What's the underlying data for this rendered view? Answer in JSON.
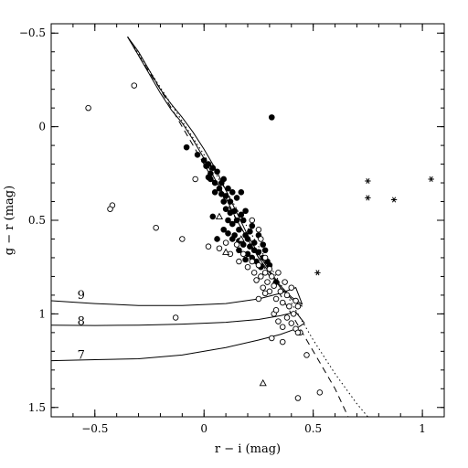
{
  "chart_data": {
    "type": "scatter",
    "xlabel": "r − i (mag)",
    "ylabel": "g − r (mag)",
    "xlim": [
      -0.7,
      1.1
    ],
    "ylim": [
      -0.55,
      1.55
    ],
    "y_inverted": true,
    "grid": false,
    "legend": "none",
    "x_ticks": [
      {
        "value": -0.5,
        "label": "−0.5"
      },
      {
        "value": 0,
        "label": "0"
      },
      {
        "value": 0.5,
        "label": "0.5"
      },
      {
        "value": 1,
        "label": "1"
      }
    ],
    "y_ticks": [
      {
        "value": -0.5,
        "label": "−0.5"
      },
      {
        "value": 0,
        "label": "0"
      },
      {
        "value": 0.5,
        "label": "0.5"
      },
      {
        "value": 1,
        "label": "1"
      },
      {
        "value": 1.5,
        "label": "1.5"
      }
    ],
    "lines": [
      {
        "style": "solid",
        "points": [
          [
            -0.35,
            -0.48
          ],
          [
            -0.3,
            -0.38
          ],
          [
            -0.25,
            -0.28
          ],
          [
            -0.2,
            -0.18
          ],
          [
            -0.15,
            -0.09
          ],
          [
            -0.1,
            -0.02
          ],
          [
            -0.05,
            0.07
          ],
          [
            0,
            0.17
          ],
          [
            0.05,
            0.28
          ],
          [
            0.1,
            0.38
          ],
          [
            0.15,
            0.5
          ],
          [
            0.2,
            0.6
          ],
          [
            0.25,
            0.7
          ],
          [
            0.3,
            0.78
          ],
          [
            0.35,
            0.86
          ],
          [
            0.4,
            0.92
          ],
          [
            0.45,
            0.96
          ]
        ]
      },
      {
        "style": "solid",
        "points": [
          [
            -0.35,
            -0.48
          ],
          [
            -0.3,
            -0.4
          ],
          [
            -0.25,
            -0.3
          ],
          [
            -0.2,
            -0.2
          ],
          [
            -0.15,
            -0.12
          ],
          [
            -0.1,
            -0.05
          ],
          [
            -0.05,
            0.03
          ],
          [
            0,
            0.12
          ],
          [
            0.05,
            0.22
          ],
          [
            0.1,
            0.34
          ],
          [
            0.15,
            0.46
          ],
          [
            0.2,
            0.58
          ],
          [
            0.25,
            0.68
          ],
          [
            0.3,
            0.77
          ],
          [
            0.35,
            0.85
          ],
          [
            0.4,
            0.91
          ],
          [
            0.45,
            0.95
          ]
        ]
      },
      {
        "style": "dotted",
        "points": [
          [
            -0.35,
            -0.48
          ],
          [
            -0.3,
            -0.39
          ],
          [
            -0.2,
            -0.21
          ],
          [
            -0.1,
            -0.03
          ],
          [
            0,
            0.15
          ],
          [
            0.1,
            0.34
          ],
          [
            0.2,
            0.54
          ],
          [
            0.3,
            0.74
          ],
          [
            0.4,
            0.94
          ],
          [
            0.5,
            1.14
          ],
          [
            0.6,
            1.32
          ],
          [
            0.7,
            1.48
          ],
          [
            0.75,
            1.55
          ]
        ]
      },
      {
        "style": "dashed",
        "points": [
          [
            -0.35,
            -0.48
          ],
          [
            -0.3,
            -0.38
          ],
          [
            -0.2,
            -0.2
          ],
          [
            -0.1,
            0.0
          ],
          [
            0,
            0.2
          ],
          [
            0.1,
            0.4
          ],
          [
            0.2,
            0.6
          ],
          [
            0.3,
            0.8
          ],
          [
            0.4,
            1.0
          ],
          [
            0.5,
            1.2
          ],
          [
            0.6,
            1.4
          ],
          [
            0.66,
            1.55
          ]
        ]
      },
      {
        "style": "solid",
        "label": "9",
        "label_at": [
          -0.58,
          0.9
        ],
        "points": [
          [
            -0.7,
            0.93
          ],
          [
            -0.5,
            0.945
          ],
          [
            -0.3,
            0.955
          ],
          [
            -0.1,
            0.955
          ],
          [
            0.1,
            0.945
          ],
          [
            0.25,
            0.92
          ],
          [
            0.35,
            0.89
          ],
          [
            0.42,
            0.86
          ],
          [
            0.45,
            0.95
          ]
        ]
      },
      {
        "style": "solid",
        "label": "8",
        "label_at": [
          -0.58,
          1.04
        ],
        "points": [
          [
            -0.7,
            1.06
          ],
          [
            -0.5,
            1.062
          ],
          [
            -0.3,
            1.06
          ],
          [
            -0.1,
            1.055
          ],
          [
            0.1,
            1.045
          ],
          [
            0.25,
            1.03
          ],
          [
            0.35,
            1.01
          ],
          [
            0.42,
            0.99
          ],
          [
            0.46,
            1.05
          ]
        ]
      },
      {
        "style": "solid",
        "label": "7",
        "label_at": [
          -0.58,
          1.22
        ],
        "points": [
          [
            -0.7,
            1.25
          ],
          [
            -0.5,
            1.245
          ],
          [
            -0.3,
            1.24
          ],
          [
            -0.1,
            1.22
          ],
          [
            0.1,
            1.18
          ],
          [
            0.25,
            1.14
          ],
          [
            0.35,
            1.11
          ],
          [
            0.42,
            1.08
          ],
          [
            0.46,
            1.05
          ]
        ]
      }
    ],
    "series": [
      {
        "marker": "filled-circle",
        "points": [
          [
            -0.08,
            0.11
          ],
          [
            -0.03,
            0.15
          ],
          [
            0,
            0.18
          ],
          [
            0.01,
            0.21
          ],
          [
            0.02,
            0.2
          ],
          [
            0.03,
            0.25
          ],
          [
            0.03,
            0.28
          ],
          [
            0.04,
            0.22
          ],
          [
            0.05,
            0.3
          ],
          [
            0.05,
            0.35
          ],
          [
            0.06,
            0.24
          ],
          [
            0.07,
            0.33
          ],
          [
            0.08,
            0.36
          ],
          [
            0.08,
            0.3
          ],
          [
            0.09,
            0.4
          ],
          [
            0.09,
            0.28
          ],
          [
            0.1,
            0.37
          ],
          [
            0.1,
            0.44
          ],
          [
            0.11,
            0.33
          ],
          [
            0.11,
            0.5
          ],
          [
            0.12,
            0.4
          ],
          [
            0.12,
            0.46
          ],
          [
            0.13,
            0.35
          ],
          [
            0.13,
            0.52
          ],
          [
            0.14,
            0.45
          ],
          [
            0.14,
            0.58
          ],
          [
            0.15,
            0.38
          ],
          [
            0.15,
            0.5
          ],
          [
            0.16,
            0.55
          ],
          [
            0.16,
            0.61
          ],
          [
            0.17,
            0.35
          ],
          [
            0.17,
            0.47
          ],
          [
            0.18,
            0.63
          ],
          [
            0.18,
            0.5
          ],
          [
            0.19,
            0.58
          ],
          [
            0.19,
            0.45
          ],
          [
            0.2,
            0.6
          ],
          [
            0.2,
            0.68
          ],
          [
            0.21,
            0.56
          ],
          [
            0.21,
            0.64
          ],
          [
            0.22,
            0.53
          ],
          [
            0.22,
            0.7
          ],
          [
            0.23,
            0.62
          ],
          [
            0.23,
            0.66
          ],
          [
            0.24,
            0.72
          ],
          [
            0.25,
            0.58
          ],
          [
            0.25,
            0.67
          ],
          [
            0.26,
            0.75
          ],
          [
            0.27,
            0.63
          ],
          [
            0.27,
            0.7
          ],
          [
            0.28,
            0.66
          ],
          [
            0.29,
            0.72
          ],
          [
            0.3,
            0.74
          ],
          [
            0.31,
            -0.05
          ],
          [
            0.33,
            0.83
          ],
          [
            0.11,
            0.57
          ],
          [
            0.13,
            0.6
          ],
          [
            0.16,
            0.66
          ],
          [
            0.19,
            0.71
          ],
          [
            0.06,
            0.6
          ],
          [
            0.09,
            0.55
          ],
          [
            0.04,
            0.48
          ],
          [
            0.02,
            0.27
          ]
        ]
      },
      {
        "marker": "open-circle",
        "points": [
          [
            -0.53,
            -0.1
          ],
          [
            -0.32,
            -0.22
          ],
          [
            -0.42,
            0.42
          ],
          [
            -0.43,
            0.44
          ],
          [
            -0.22,
            0.54
          ],
          [
            -0.1,
            0.6
          ],
          [
            -0.04,
            0.28
          ],
          [
            0.02,
            0.64
          ],
          [
            0.07,
            0.65
          ],
          [
            0.1,
            0.62
          ],
          [
            0.12,
            0.68
          ],
          [
            0.15,
            0.63
          ],
          [
            0.16,
            0.72
          ],
          [
            0.18,
            0.68
          ],
          [
            0.2,
            0.75
          ],
          [
            0.22,
            0.72
          ],
          [
            0.23,
            0.78
          ],
          [
            0.24,
            0.82
          ],
          [
            0.25,
            0.74
          ],
          [
            0.26,
            0.8
          ],
          [
            0.27,
            0.86
          ],
          [
            0.28,
            0.78
          ],
          [
            0.29,
            0.83
          ],
          [
            0.3,
            0.88
          ],
          [
            0.31,
            0.8
          ],
          [
            0.32,
            0.85
          ],
          [
            0.33,
            0.92
          ],
          [
            0.34,
            0.78
          ],
          [
            0.35,
            0.88
          ],
          [
            0.36,
            0.94
          ],
          [
            0.37,
            0.83
          ],
          [
            0.38,
            0.9
          ],
          [
            0.39,
            0.96
          ],
          [
            0.4,
            0.86
          ],
          [
            0.41,
            1.0
          ],
          [
            0.42,
            0.93
          ],
          [
            0.43,
            0.96
          ],
          [
            0.32,
            1.0
          ],
          [
            0.34,
            1.04
          ],
          [
            0.36,
            1.07
          ],
          [
            0.38,
            1.02
          ],
          [
            0.4,
            1.05
          ],
          [
            0.42,
            1.08
          ],
          [
            0.44,
            1.1
          ],
          [
            0.31,
            1.13
          ],
          [
            0.36,
            1.15
          ],
          [
            0.43,
            1.1
          ],
          [
            0.47,
            1.22
          ],
          [
            0.43,
            1.45
          ],
          [
            0.53,
            1.42
          ],
          [
            -0.13,
            1.02
          ],
          [
            0.26,
            0.6
          ],
          [
            0.22,
            0.5
          ],
          [
            0.25,
            0.55
          ],
          [
            0.28,
            0.7
          ],
          [
            0.3,
            0.76
          ],
          [
            0.28,
            0.89
          ],
          [
            0.25,
            0.92
          ],
          [
            0.33,
            0.98
          ]
        ]
      },
      {
        "marker": "open-triangle",
        "points": [
          [
            0.07,
            0.48
          ],
          [
            0.17,
            0.6
          ],
          [
            0.1,
            0.67
          ],
          [
            0.27,
            1.37
          ]
        ]
      },
      {
        "marker": "asterisk",
        "points": [
          [
            0.75,
            0.29
          ],
          [
            0.75,
            0.38
          ],
          [
            0.87,
            0.39
          ],
          [
            1.04,
            0.28
          ],
          [
            0.52,
            0.78
          ]
        ]
      }
    ]
  }
}
